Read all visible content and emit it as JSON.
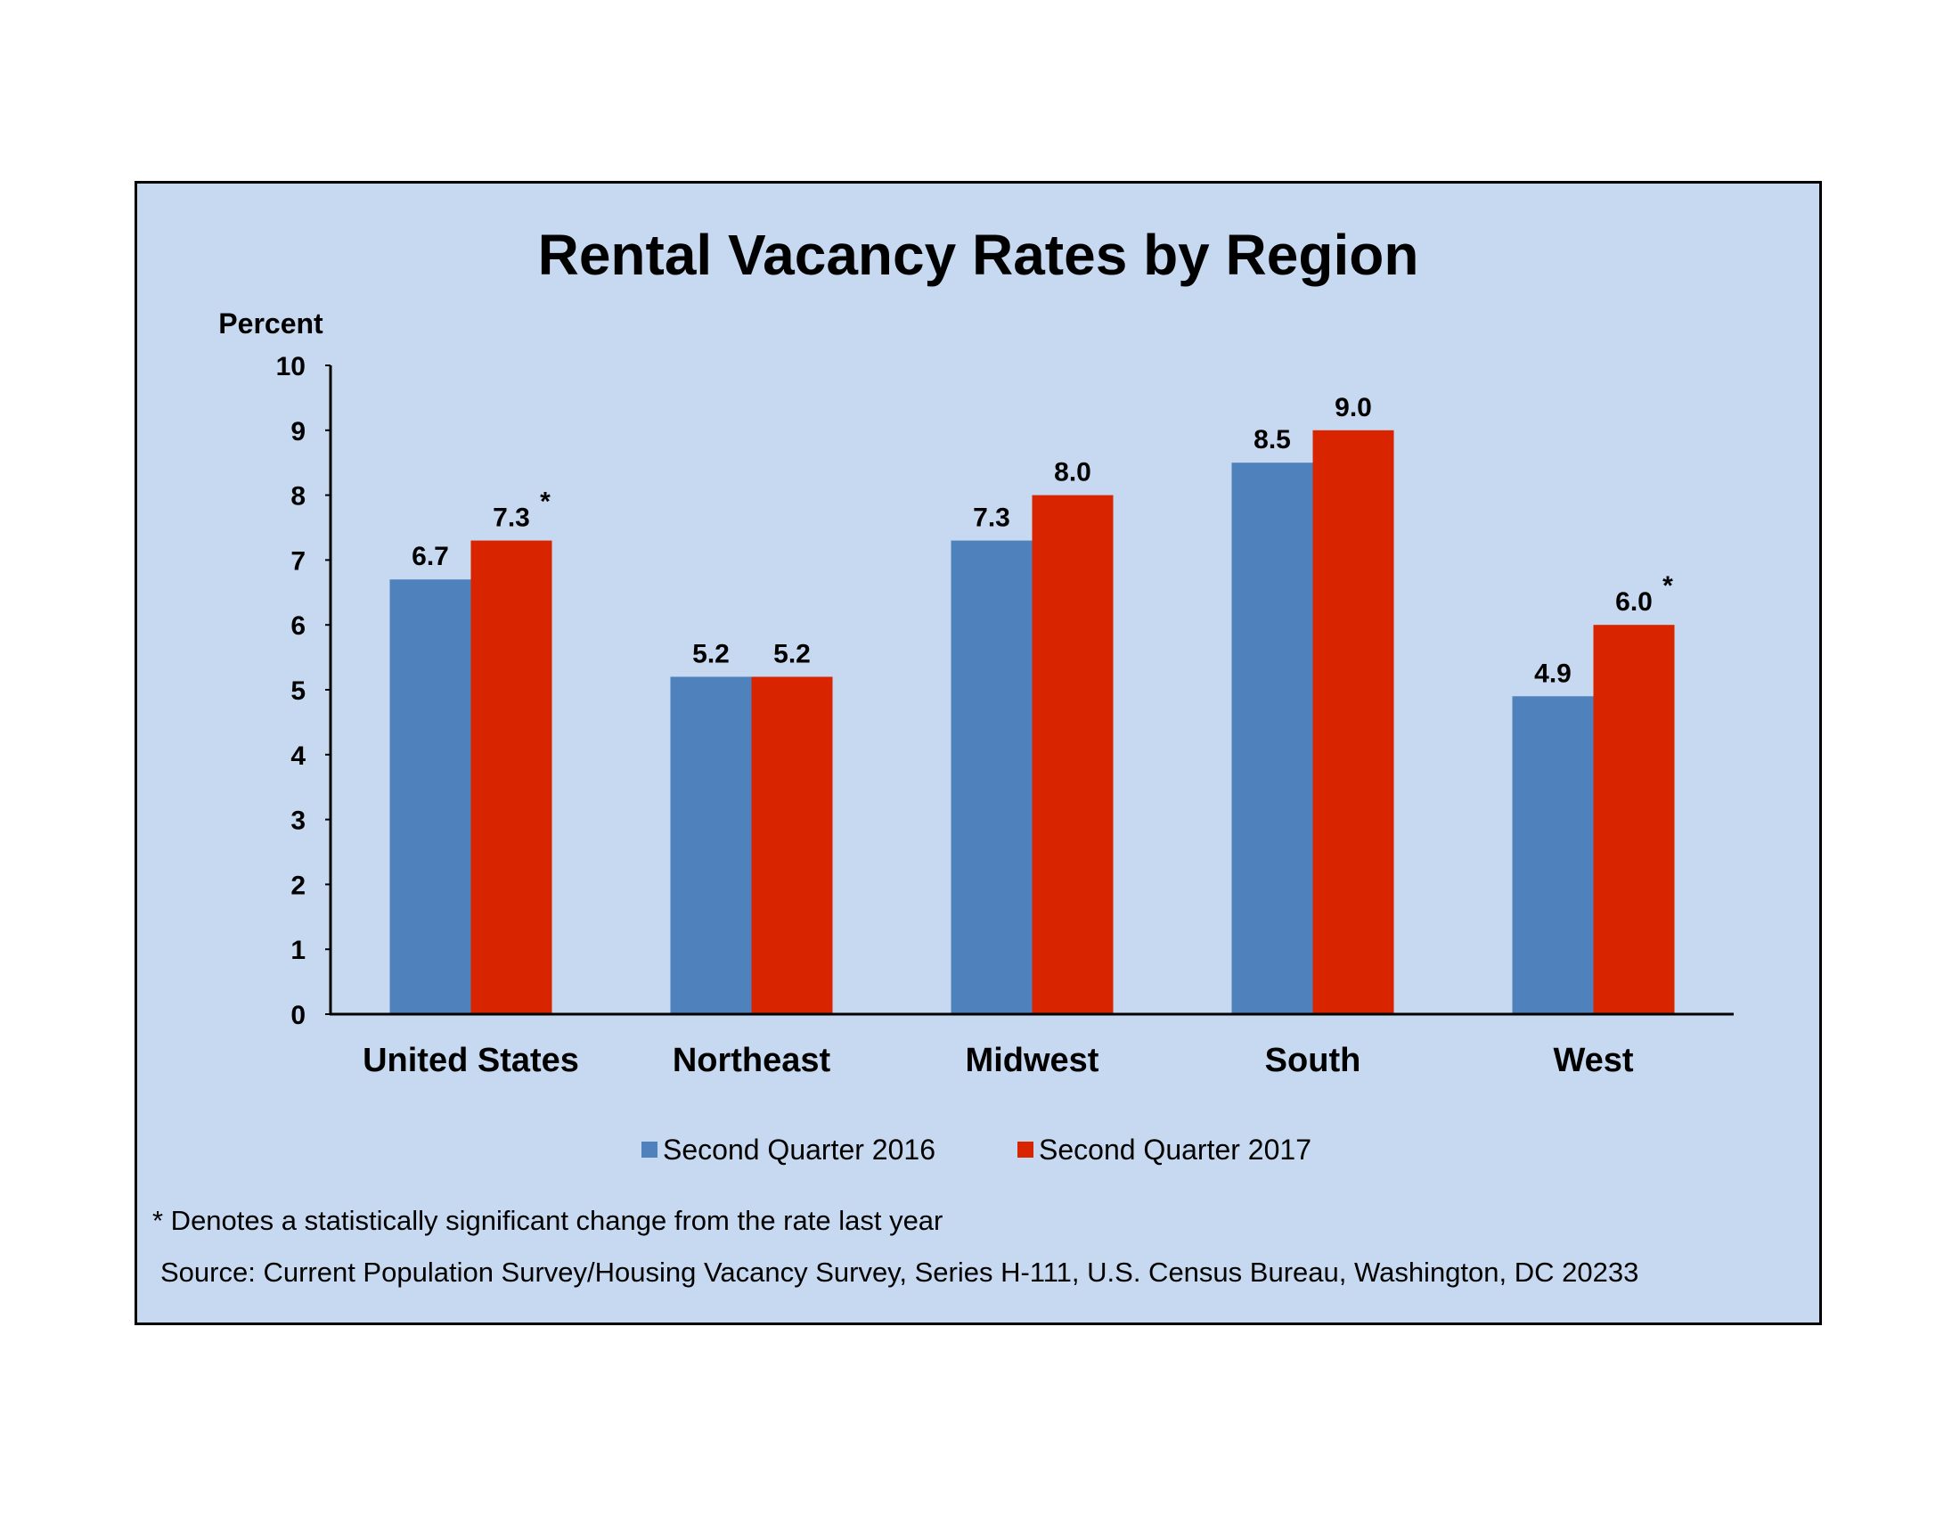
{
  "chart_data": {
    "type": "bar",
    "title": "Rental Vacancy Rates by Region",
    "ylabel": "Percent",
    "xlabel": "",
    "ylim": [
      0,
      10
    ],
    "yticks": [
      0,
      1,
      2,
      3,
      4,
      5,
      6,
      7,
      8,
      9,
      10
    ],
    "categories": [
      "United States",
      "Northeast",
      "Midwest",
      "South",
      "West"
    ],
    "series": [
      {
        "name": "Second Quarter 2016",
        "color": "#4f81bd",
        "values": [
          6.7,
          5.2,
          7.3,
          8.5,
          4.9
        ],
        "labels": [
          "6.7",
          "5.2",
          "7.3",
          "8.5",
          "4.9"
        ],
        "markers": [
          "",
          "",
          "",
          "",
          ""
        ]
      },
      {
        "name": "Second Quarter 2017",
        "color": "#d92400",
        "values": [
          7.3,
          5.2,
          8.0,
          9.0,
          6.0
        ],
        "labels": [
          "7.3",
          "5.2",
          "8.0",
          "9.0",
          "6.0"
        ],
        "markers": [
          "*",
          "",
          "",
          "",
          "*"
        ]
      }
    ],
    "legend_position": "bottom",
    "grid": false,
    "background": "#c6d9f0",
    "footnote": "* Denotes a statistically significant change from the rate last year",
    "source": "Source: Current Population Survey/Housing Vacancy Survey, Series H-111, U.S. Census Bureau, Washington, DC 20233"
  }
}
